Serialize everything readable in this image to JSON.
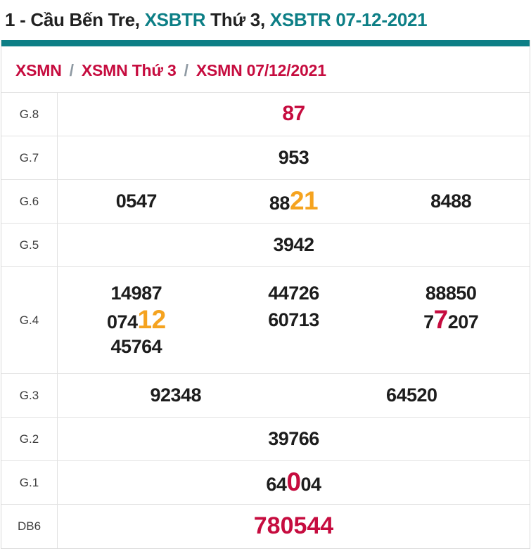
{
  "colors": {
    "teal_accent": "#0d7f86",
    "crimson": "#c60c3f",
    "orange_highlight": "#f5a31f",
    "text_dark": "#1d1d1d",
    "grid_border": "#e2e2e2"
  },
  "header": {
    "title_parts": [
      {
        "text": "1 - Cầu Bến Tre, ",
        "style": "dark"
      },
      {
        "text": "XSBTR ",
        "style": "teal"
      },
      {
        "text": "Thứ 3, ",
        "style": "dark"
      },
      {
        "text": "XSBTR 07-12-2021",
        "style": "teal"
      }
    ]
  },
  "breadcrumb": {
    "separator": "/",
    "items": [
      {
        "label": "XSMN"
      },
      {
        "label": "XSMN Thứ 3"
      },
      {
        "label": "XSMN 07/12/2021"
      }
    ]
  },
  "table": {
    "rows": [
      {
        "label": "G.8",
        "cols": 1,
        "special": false,
        "values": [
          {
            "em": "red",
            "parts": [
              {
                "t": "87",
                "hl": null
              }
            ]
          }
        ]
      },
      {
        "label": "G.7",
        "cols": 1,
        "special": false,
        "values": [
          {
            "em": null,
            "parts": [
              {
                "t": "953",
                "hl": null
              }
            ]
          }
        ]
      },
      {
        "label": "G.6",
        "cols": 3,
        "special": false,
        "values": [
          {
            "em": null,
            "parts": [
              {
                "t": "0547",
                "hl": null
              }
            ]
          },
          {
            "em": null,
            "parts": [
              {
                "t": "88",
                "hl": null
              },
              {
                "t": "21",
                "hl": "orange"
              }
            ]
          },
          {
            "em": null,
            "parts": [
              {
                "t": "8488",
                "hl": null
              }
            ]
          }
        ]
      },
      {
        "label": "G.5",
        "cols": 1,
        "special": false,
        "values": [
          {
            "em": null,
            "parts": [
              {
                "t": "3942",
                "hl": null
              }
            ]
          }
        ]
      },
      {
        "label": "G.4",
        "cols": 3,
        "special": false,
        "values": [
          {
            "em": null,
            "parts": [
              {
                "t": "14987",
                "hl": null
              }
            ]
          },
          {
            "em": null,
            "parts": [
              {
                "t": "44726",
                "hl": null
              }
            ]
          },
          {
            "em": null,
            "parts": [
              {
                "t": "88850",
                "hl": null
              }
            ]
          },
          {
            "em": null,
            "parts": [
              {
                "t": "074",
                "hl": null
              },
              {
                "t": "12",
                "hl": "orange"
              }
            ]
          },
          {
            "em": null,
            "parts": [
              {
                "t": "60713",
                "hl": null
              }
            ]
          },
          {
            "em": null,
            "parts": [
              {
                "t": "7",
                "hl": null
              },
              {
                "t": "7",
                "hl": "red"
              },
              {
                "t": "207",
                "hl": null
              }
            ]
          },
          {
            "em": null,
            "parts": [
              {
                "t": "45764",
                "hl": null
              }
            ]
          }
        ]
      },
      {
        "label": "G.3",
        "cols": 2,
        "special": false,
        "values": [
          {
            "em": null,
            "parts": [
              {
                "t": "92348",
                "hl": null
              }
            ]
          },
          {
            "em": null,
            "parts": [
              {
                "t": "64520",
                "hl": null
              }
            ]
          }
        ]
      },
      {
        "label": "G.2",
        "cols": 1,
        "special": false,
        "values": [
          {
            "em": null,
            "parts": [
              {
                "t": "39766",
                "hl": null
              }
            ]
          }
        ]
      },
      {
        "label": "G.1",
        "cols": 1,
        "special": false,
        "values": [
          {
            "em": null,
            "parts": [
              {
                "t": "64",
                "hl": null
              },
              {
                "t": "0",
                "hl": "red"
              },
              {
                "t": "04",
                "hl": null
              }
            ]
          }
        ]
      },
      {
        "label": "DB6",
        "cols": 1,
        "special": true,
        "values": [
          {
            "em": "red",
            "parts": [
              {
                "t": "780544",
                "hl": null
              }
            ]
          }
        ]
      }
    ]
  }
}
